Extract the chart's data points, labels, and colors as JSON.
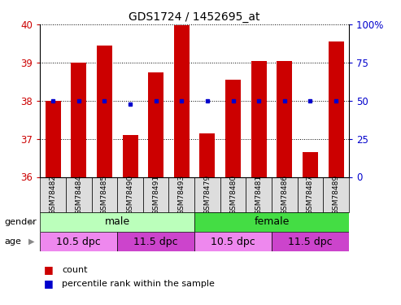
{
  "title": "GDS1724 / 1452695_at",
  "samples": [
    "GSM78482",
    "GSM78484",
    "GSM78485",
    "GSM78490",
    "GSM78491",
    "GSM78493",
    "GSM78479",
    "GSM78480",
    "GSM78481",
    "GSM78486",
    "GSM78487",
    "GSM78489"
  ],
  "count_values": [
    38.0,
    39.0,
    39.45,
    37.1,
    38.75,
    39.97,
    37.15,
    38.55,
    39.05,
    39.05,
    36.65,
    39.55
  ],
  "percentile_values": [
    38.0,
    38.0,
    38.0,
    37.9,
    38.0,
    38.0,
    38.0,
    38.0,
    38.0,
    38.0,
    38.0,
    38.0
  ],
  "ylim_left": [
    36,
    40
  ],
  "yticks_left": [
    36,
    37,
    38,
    39,
    40
  ],
  "yticks_right": [
    0,
    25,
    50,
    75,
    100
  ],
  "bar_color": "#cc0000",
  "dot_color": "#0000cc",
  "background_color": "#ffffff",
  "gender_rows": [
    {
      "label": "male",
      "start": 0,
      "end": 6,
      "color": "#bbffbb"
    },
    {
      "label": "female",
      "start": 6,
      "end": 12,
      "color": "#44dd44"
    }
  ],
  "age_rows": [
    {
      "label": "10.5 dpc",
      "start": 0,
      "end": 3,
      "color": "#ee88ee"
    },
    {
      "label": "11.5 dpc",
      "start": 3,
      "end": 6,
      "color": "#cc44cc"
    },
    {
      "label": "10.5 dpc",
      "start": 6,
      "end": 9,
      "color": "#ee88ee"
    },
    {
      "label": "11.5 dpc",
      "start": 9,
      "end": 12,
      "color": "#cc44cc"
    }
  ],
  "legend_count_label": "count",
  "legend_pct_label": "percentile rank within the sample",
  "bar_color_red": "#cc0000",
  "dot_color_blue": "#0000cc",
  "bar_base": 36,
  "title_fontsize": 10,
  "sample_fontsize": 6.5
}
